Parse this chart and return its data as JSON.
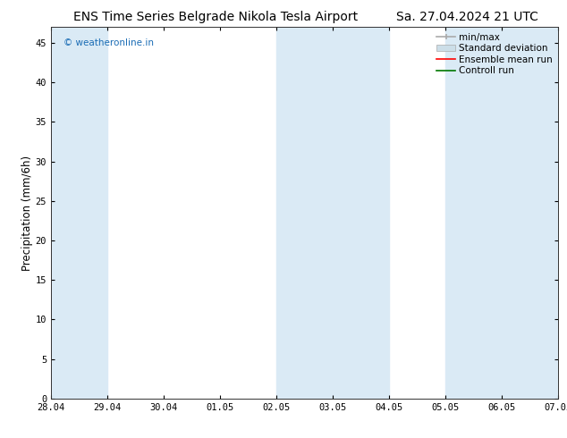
{
  "title_left": "ENS Time Series Belgrade Nikola Tesla Airport",
  "title_right": "Sa. 27.04.2024 21 UTC",
  "ylabel": "Precipitation (mm/6h)",
  "xlabel_ticks": [
    "28.04",
    "29.04",
    "30.04",
    "01.05",
    "02.05",
    "03.05",
    "04.05",
    "05.05",
    "06.05",
    "07.05"
  ],
  "xlim": [
    0,
    9
  ],
  "ylim": [
    0,
    47
  ],
  "yticks": [
    0,
    5,
    10,
    15,
    20,
    25,
    30,
    35,
    40,
    45
  ],
  "shaded_regions": [
    {
      "x_start": 0.0,
      "x_end": 1.0,
      "color": "#daeaf5"
    },
    {
      "x_start": 4.0,
      "x_end": 5.0,
      "color": "#daeaf5"
    },
    {
      "x_start": 5.0,
      "x_end": 6.0,
      "color": "#daeaf5"
    },
    {
      "x_start": 7.0,
      "x_end": 8.0,
      "color": "#daeaf5"
    },
    {
      "x_start": 8.0,
      "x_end": 9.0,
      "color": "#daeaf5"
    }
  ],
  "watermark": "© weatheronline.in",
  "watermark_color": "#1a6cb5",
  "bg_color": "#ffffff",
  "legend_labels": [
    "min/max",
    "Standard deviation",
    "Ensemble mean run",
    "Controll run"
  ],
  "legend_minmax_color": "#aaaaaa",
  "legend_std_color": "#ccdee8",
  "legend_ens_color": "#ff0000",
  "legend_ctrl_color": "#007700",
  "title_fontsize": 10,
  "tick_fontsize": 7.5,
  "ylabel_fontsize": 8.5,
  "legend_fontsize": 7.5
}
